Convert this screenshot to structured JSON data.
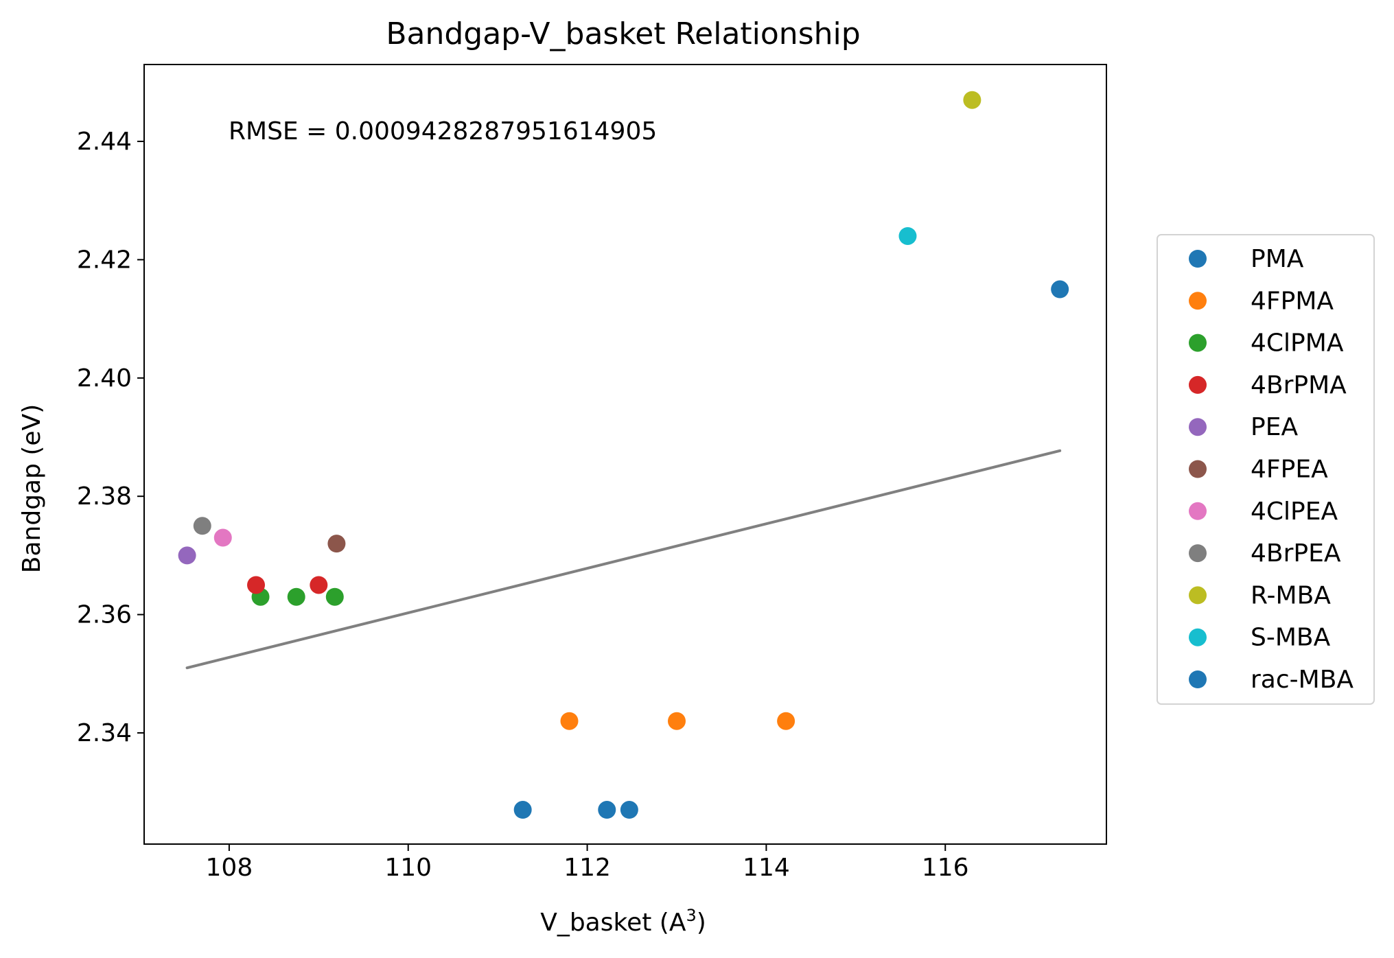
{
  "chart_data": {
    "type": "scatter",
    "title": "Bandgap-V_basket Relationship",
    "xlabel": "V_basket (A",
    "xlabel_superscript": "3",
    "xlabel_suffix": ")",
    "ylabel": "Bandgap (eV)",
    "annotation": "RMSE = 0.0009428287951614905",
    "xlim": [
      107.05,
      117.8
    ],
    "ylim": [
      2.3212,
      2.453
    ],
    "xticks": [
      108,
      110,
      112,
      114,
      116
    ],
    "yticks": [
      2.34,
      2.36,
      2.38,
      2.4,
      2.42,
      2.44
    ],
    "xtick_labels": [
      "108",
      "110",
      "112",
      "114",
      "116"
    ],
    "ytick_labels": [
      "2.34",
      "2.36",
      "2.38",
      "2.40",
      "2.42",
      "2.44"
    ],
    "grid": false,
    "legend_position": "right",
    "series": [
      {
        "name": "PMA",
        "color": "#1f77b4",
        "points": [
          [
            111.28,
            2.327
          ],
          [
            112.22,
            2.327
          ],
          [
            112.47,
            2.327
          ]
        ]
      },
      {
        "name": "4FPMA",
        "color": "#ff7f0e",
        "points": [
          [
            111.8,
            2.342
          ],
          [
            113.0,
            2.342
          ],
          [
            114.22,
            2.342
          ]
        ]
      },
      {
        "name": "4ClPMA",
        "color": "#2ca02c",
        "points": [
          [
            108.35,
            2.363
          ],
          [
            108.75,
            2.363
          ],
          [
            109.18,
            2.363
          ]
        ]
      },
      {
        "name": "4BrPMA",
        "color": "#d62728",
        "points": [
          [
            108.3,
            2.365
          ],
          [
            109.0,
            2.365
          ]
        ]
      },
      {
        "name": "PEA",
        "color": "#9467bd",
        "points": [
          [
            107.53,
            2.37
          ]
        ]
      },
      {
        "name": "4FPEA",
        "color": "#8c564b",
        "points": [
          [
            109.2,
            2.372
          ]
        ]
      },
      {
        "name": "4ClPEA",
        "color": "#e377c2",
        "points": [
          [
            107.93,
            2.373
          ]
        ]
      },
      {
        "name": "4BrPEA",
        "color": "#7f7f7f",
        "points": [
          [
            107.7,
            2.375
          ]
        ]
      },
      {
        "name": "R-MBA",
        "color": "#bcbd22",
        "points": [
          [
            116.3,
            2.447
          ]
        ]
      },
      {
        "name": "S-MBA",
        "color": "#17becf",
        "points": [
          [
            115.58,
            2.424
          ]
        ]
      },
      {
        "name": "rac-MBA",
        "color": "#1f77b4",
        "points": [
          [
            117.28,
            2.415
          ]
        ]
      }
    ],
    "fit_line": {
      "color": "#808080",
      "x": [
        107.53,
        117.28
      ],
      "y": [
        2.351,
        2.3877
      ]
    }
  }
}
